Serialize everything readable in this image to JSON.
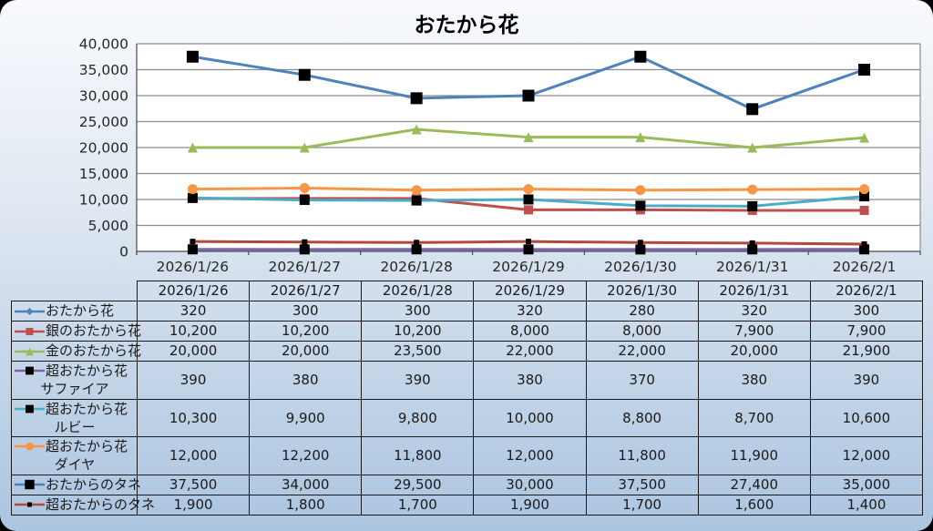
{
  "title": "おたから花",
  "chart_data": {
    "type": "line",
    "title": "おたから花",
    "x": [
      "2026/1/26",
      "2026/1/27",
      "2026/1/28",
      "2026/1/29",
      "2026/1/30",
      "2026/1/31",
      "2026/2/1"
    ],
    "xlabel": "",
    "ylabel": "",
    "ylim": [
      0,
      40000
    ],
    "ytick_step": 5000,
    "grid": true,
    "legend_position": "table-left-column",
    "plot_bg": "#FFFFFF",
    "grid_color": "#8C8C8C",
    "axis_color": "#4A4A4A",
    "series": [
      {
        "name": "おたから花",
        "label_lines": [
          "おたから花"
        ],
        "color": "#4F81BD",
        "marker": "diamond",
        "marker_color": "#4F81BD",
        "marker_size": 10,
        "values": [
          320,
          300,
          300,
          320,
          280,
          320,
          300
        ]
      },
      {
        "name": "銀のおたから花",
        "label_lines": [
          "銀のおたから花"
        ],
        "color": "#C0504D",
        "marker": "square",
        "marker_color": "#C0504D",
        "marker_size": 10,
        "values": [
          10200,
          10200,
          10200,
          8000,
          8000,
          7900,
          7900
        ]
      },
      {
        "name": "金のおたから花",
        "label_lines": [
          "金のおたから花"
        ],
        "color": "#9BBB59",
        "marker": "triangle",
        "marker_color": "#9BBB59",
        "marker_size": 11,
        "values": [
          20000,
          20000,
          23500,
          22000,
          22000,
          20000,
          21900
        ]
      },
      {
        "name": "超おたから花 サファイア",
        "label_lines": [
          "超おたから花",
          "サファイア"
        ],
        "color": "#8064A2",
        "marker": "square",
        "marker_color": "#000000",
        "marker_size": 11,
        "values": [
          390,
          380,
          390,
          380,
          370,
          380,
          390
        ]
      },
      {
        "name": "超おたから花 ルビー",
        "label_lines": [
          "超おたから花",
          "ルビー"
        ],
        "color": "#4BACC6",
        "marker": "square",
        "marker_color": "#000000",
        "marker_size": 11,
        "values": [
          10300,
          9900,
          9800,
          10000,
          8800,
          8700,
          10600
        ]
      },
      {
        "name": "超おたから花 ダイヤ",
        "label_lines": [
          "超おたから花",
          "ダイヤ"
        ],
        "color": "#F79646",
        "marker": "circle",
        "marker_color": "#F79646",
        "marker_size": 11,
        "values": [
          12000,
          12200,
          11800,
          12000,
          11800,
          11900,
          12000
        ]
      },
      {
        "name": "おたからのタネ",
        "label_lines": [
          "おたからのタネ"
        ],
        "color": "#4F81BD",
        "marker": "square",
        "marker_color": "#000000",
        "marker_size": 13,
        "values": [
          37500,
          34000,
          29500,
          30000,
          37500,
          27400,
          35000
        ]
      },
      {
        "name": "超おたからのタネ",
        "label_lines": [
          "超おたからのタネ"
        ],
        "color": "#B2493F",
        "marker": "square",
        "marker_color": "#000000",
        "marker_size": 6,
        "values": [
          1900,
          1800,
          1700,
          1900,
          1700,
          1600,
          1400
        ]
      }
    ]
  }
}
